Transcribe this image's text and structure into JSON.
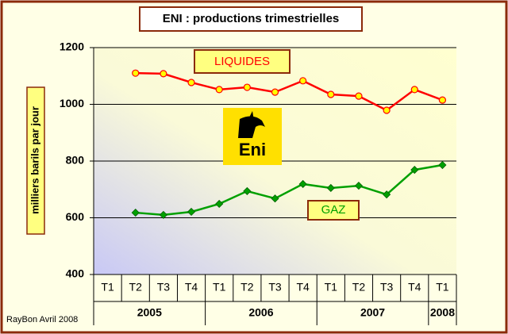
{
  "chart_data": {
    "type": "line",
    "title": "ENI : productions trimestrielles",
    "y_label": "milliers barils par jour",
    "source": "RayBon Avril 2008",
    "logo_text": "Eni",
    "categories": [
      "T1",
      "T2",
      "T3",
      "T4",
      "T1",
      "T2",
      "T3",
      "T4",
      "T1",
      "T2",
      "T3",
      "T4",
      "T1"
    ],
    "groups": [
      "2005",
      "2006",
      "2007",
      "2008"
    ],
    "series": [
      {
        "name": "LIQUIDES",
        "color": "#ff0000",
        "values": [
          null,
          1110,
          1108,
          1077,
          1052,
          1060,
          1043,
          1083,
          1035,
          1029,
          979,
          1052,
          1015
        ]
      },
      {
        "name": "GAZ",
        "color": "#00a000",
        "values": [
          null,
          618,
          610,
          621,
          649,
          694,
          668,
          719,
          705,
          713,
          682,
          769,
          786
        ]
      }
    ],
    "ylim": [
      400,
      1200
    ],
    "yticks": [
      400,
      600,
      800,
      1000,
      1200
    ],
    "grid": true
  }
}
